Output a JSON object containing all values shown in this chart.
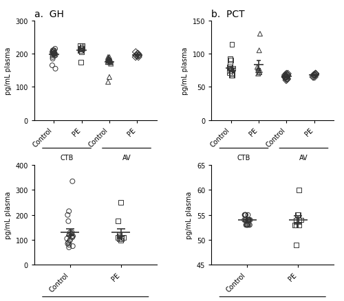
{
  "title_a": "a.  GH",
  "title_b": "b.  PCT",
  "ylabel": "pg/mL plasma",
  "gh_ctb_control": [
    205,
    195,
    200,
    210,
    190,
    185,
    205,
    215,
    200,
    195,
    165,
    155,
    200,
    210,
    205,
    195,
    200,
    205,
    210,
    200
  ],
  "gh_ctb_pe": [
    215,
    225,
    210,
    175,
    215,
    220,
    215,
    205,
    225,
    210
  ],
  "gh_av_control": [
    175,
    180,
    185,
    175,
    170,
    180,
    185,
    190,
    175,
    185,
    115,
    130,
    175,
    180,
    185,
    175,
    185,
    190,
    180,
    175
  ],
  "gh_av_pe": [
    195,
    200,
    195,
    190,
    200,
    195,
    205,
    195,
    190,
    195
  ],
  "gh_ylim": [
    0,
    300
  ],
  "gh_yticks": [
    0,
    100,
    200,
    300
  ],
  "pct_ctb_control": [
    75,
    80,
    70,
    75,
    85,
    90,
    72,
    68,
    75,
    78,
    114,
    92,
    75,
    72,
    68,
    75,
    70,
    80,
    75,
    72
  ],
  "pct_ctb_pe": [
    75,
    72,
    78,
    80,
    75,
    70,
    72,
    105,
    130,
    75
  ],
  "pct_av_control": [
    65,
    68,
    62,
    65,
    68,
    70,
    65,
    60,
    65,
    68,
    65,
    62,
    68,
    65,
    70,
    65,
    62,
    68,
    65,
    65
  ],
  "pct_av_pe": [
    68,
    65,
    70,
    68,
    65,
    70,
    68,
    65,
    70,
    68
  ],
  "pct_ylim": [
    0,
    150
  ],
  "pct_yticks": [
    0,
    50,
    100,
    150
  ],
  "plasma_gh_control": [
    130,
    335,
    215,
    200,
    175,
    120,
    115,
    110,
    105,
    100,
    95,
    90,
    85,
    80,
    75,
    70,
    130,
    125,
    120,
    115
  ],
  "plasma_gh_pe": [
    110,
    105,
    100,
    115,
    120,
    110,
    105,
    250,
    175,
    115
  ],
  "plasma_gh_ylim": [
    0,
    400
  ],
  "plasma_gh_yticks": [
    0,
    100,
    200,
    300,
    400
  ],
  "plasma_pct_control": [
    53,
    54,
    55,
    53,
    54,
    55,
    54,
    53,
    55,
    54,
    53,
    55,
    54,
    53,
    55,
    54,
    53,
    55,
    54,
    53
  ],
  "plasma_pct_pe": [
    54,
    53,
    55,
    54,
    53,
    49,
    60,
    55,
    54,
    53
  ],
  "plasma_pct_ylim": [
    45,
    65
  ],
  "plasma_pct_yticks": [
    45,
    50,
    55,
    60,
    65
  ],
  "marker_control_top": "o",
  "marker_pe_top": "s",
  "marker_control_av": "^",
  "marker_pe_av": "D",
  "marker_control_bottom": "o",
  "marker_pe_bottom": "s",
  "marker_color": "none",
  "marker_edge_color": "#333333",
  "marker_size": 5,
  "line_color": "#333333",
  "error_color": "#333333",
  "bg_color": "#ffffff"
}
